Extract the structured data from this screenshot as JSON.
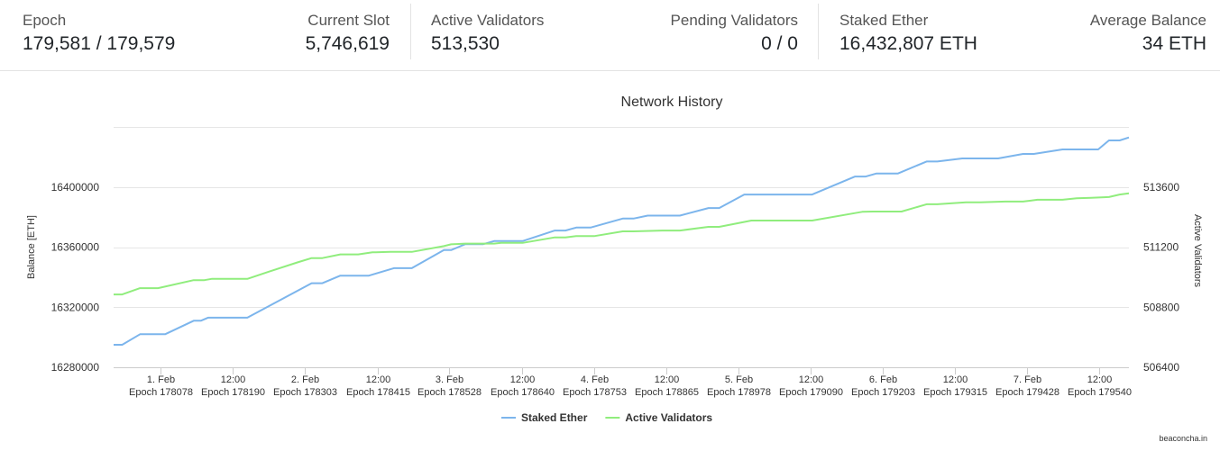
{
  "stats": {
    "epoch": {
      "label": "Epoch",
      "value": "179,581 / 179,579"
    },
    "current_slot": {
      "label": "Current Slot",
      "value": "5,746,619"
    },
    "active_validators": {
      "label": "Active Validators",
      "value": "513,530"
    },
    "pending_validators": {
      "label": "Pending Validators",
      "value": "0 / 0"
    },
    "staked_ether": {
      "label": "Staked Ether",
      "value": "16,432,807 ETH"
    },
    "average_balance": {
      "label": "Average Balance",
      "value": "34 ETH"
    }
  },
  "credit": "beaconcha.in",
  "chart_data": {
    "type": "line",
    "title": "Network History",
    "ylabel_left": "Balance [ETH]",
    "ylabel_right": "Active Validators",
    "yticks_left": [
      "16280000",
      "16320000",
      "16360000",
      "16400000"
    ],
    "yticks_right": [
      "506400",
      "508800",
      "511200",
      "513600"
    ],
    "ylim_left": [
      16280000,
      16440000
    ],
    "ylim_right": [
      506400,
      516000
    ],
    "xlim": [
      0,
      1420
    ],
    "x_ticks": [
      {
        "x": 65,
        "date": "1. Feb",
        "epoch": "Epoch 178078"
      },
      {
        "x": 167,
        "date": "12:00",
        "epoch": "Epoch 178190"
      },
      {
        "x": 267,
        "date": "2. Feb",
        "epoch": "Epoch 178303"
      },
      {
        "x": 369,
        "date": "12:00",
        "epoch": "Epoch 178415"
      },
      {
        "x": 469,
        "date": "3. Feb",
        "epoch": "Epoch 178528"
      },
      {
        "x": 571,
        "date": "12:00",
        "epoch": "Epoch 178640"
      },
      {
        "x": 672,
        "date": "4. Feb",
        "epoch": "Epoch 178753"
      },
      {
        "x": 773,
        "date": "12:00",
        "epoch": "Epoch 178865"
      },
      {
        "x": 874,
        "date": "5. Feb",
        "epoch": "Epoch 178978"
      },
      {
        "x": 975,
        "date": "12:00",
        "epoch": "Epoch 179090"
      },
      {
        "x": 1076,
        "date": "6. Feb",
        "epoch": "Epoch 179203"
      },
      {
        "x": 1177,
        "date": "12:00",
        "epoch": "Epoch 179315"
      },
      {
        "x": 1278,
        "date": "7. Feb",
        "epoch": "Epoch 179428"
      },
      {
        "x": 1379,
        "date": "12:00",
        "epoch": "Epoch 179540"
      }
    ],
    "series": [
      {
        "name": "Staked Ether",
        "axis": "left",
        "color": "#7cb5ec",
        "x": [
          0,
          12,
          37,
          72,
          112,
          122,
          132,
          187,
          277,
          292,
          317,
          357,
          392,
          417,
          462,
          472,
          492,
          517,
          532,
          542,
          557,
          572,
          617,
          632,
          647,
          652,
          667,
          712,
          727,
          747,
          767,
          792,
          832,
          847,
          882,
          912,
          977,
          1037,
          1052,
          1067,
          1097,
          1137,
          1152,
          1187,
          1212,
          1237,
          1272,
          1287,
          1327,
          1347,
          1377,
          1392,
          1407,
          1420
        ],
        "values": [
          16295000,
          16295000,
          16302000,
          16302000,
          16311000,
          16311000,
          16313000,
          16313000,
          16336000,
          16336000,
          16341000,
          16341000,
          16346000,
          16346000,
          16358000,
          16358000,
          16362000,
          16362000,
          16364000,
          16364000,
          16364000,
          16364000,
          16371000,
          16371000,
          16373000,
          16373000,
          16373000,
          16379000,
          16379000,
          16381000,
          16381000,
          16381000,
          16386000,
          16386000,
          16395000,
          16395000,
          16395000,
          16407000,
          16407000,
          16409000,
          16409000,
          16417000,
          16417000,
          16419000,
          16419000,
          16419000,
          16422000,
          16422000,
          16425000,
          16425000,
          16425000,
          16431000,
          16431000,
          16433000
        ]
      },
      {
        "name": "Active Validators",
        "axis": "right",
        "color": "#90ed7d",
        "x": [
          0,
          12,
          37,
          62,
          112,
          127,
          137,
          187,
          217,
          257,
          277,
          292,
          317,
          342,
          362,
          367,
          387,
          417,
          462,
          472,
          492,
          517,
          532,
          542,
          557,
          572,
          617,
          632,
          647,
          672,
          712,
          727,
          767,
          792,
          832,
          847,
          892,
          912,
          977,
          1037,
          1047,
          1062,
          1102,
          1137,
          1152,
          1192,
          1212,
          1247,
          1272,
          1292,
          1327,
          1347,
          1367,
          1392,
          1407,
          1420
        ],
        "values": [
          509310,
          509310,
          509560,
          509560,
          509880,
          509880,
          509930,
          509930,
          510220,
          510590,
          510760,
          510760,
          510910,
          510910,
          510990,
          510990,
          511010,
          511010,
          511240,
          511310,
          511340,
          511340,
          511340,
          511370,
          511370,
          511370,
          511590,
          511590,
          511640,
          511640,
          511830,
          511830,
          511860,
          511860,
          512010,
          512010,
          512260,
          512260,
          512260,
          512560,
          512610,
          512620,
          512620,
          512910,
          512910,
          512990,
          512990,
          513020,
          513020,
          513090,
          513090,
          513150,
          513170,
          513200,
          513300,
          513350
        ]
      }
    ]
  }
}
